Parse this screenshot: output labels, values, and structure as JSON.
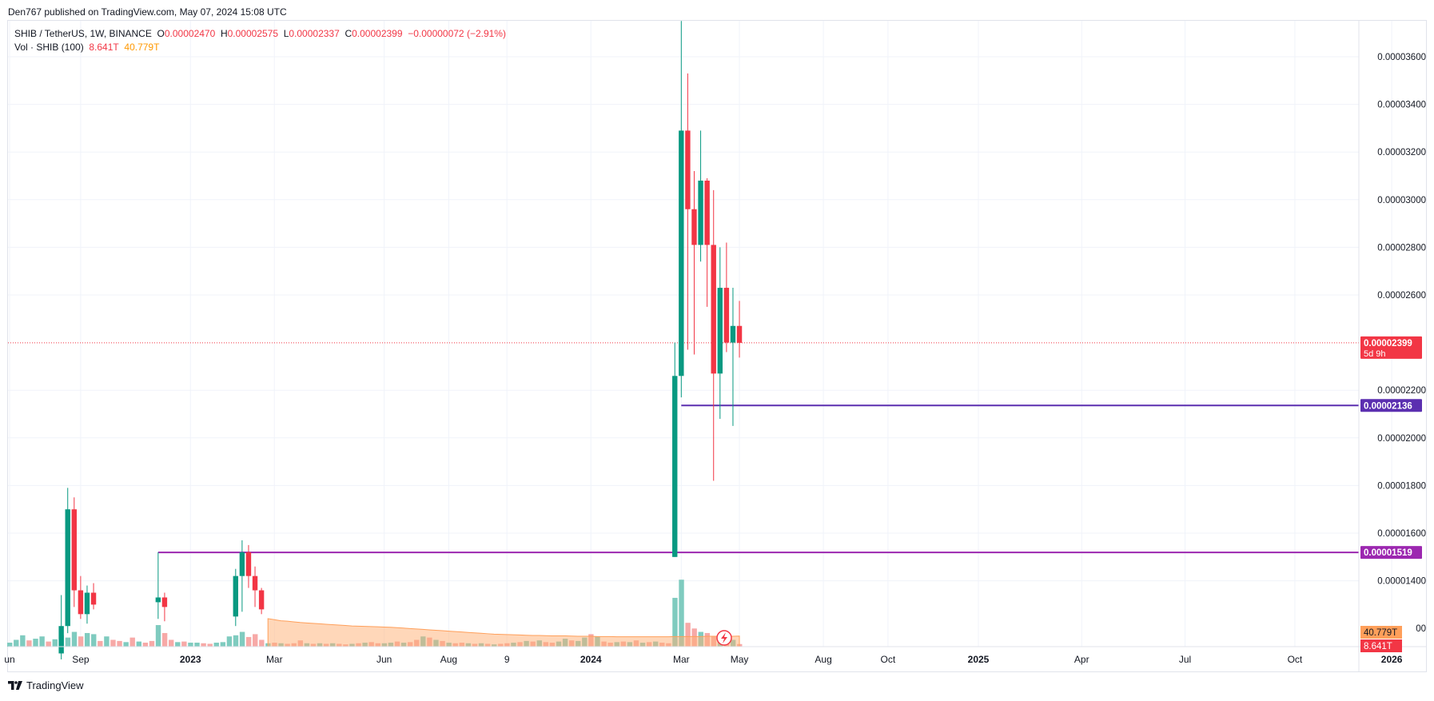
{
  "header": {
    "published": "Den767 published on TradingView.com, May 07, 2024 15:08 UTC"
  },
  "legend": {
    "symbol": "SHIB / TetherUS, 1W, BINANCE",
    "o_label": "O",
    "o_value": "0.00002470",
    "h_label": "H",
    "h_value": "0.00002575",
    "l_label": "L",
    "l_value": "0.00002337",
    "c_label": "C",
    "c_value": "0.00002399",
    "change": "−0.00000072 (−2.91%)",
    "vol_label": "Vol · SHIB (100)",
    "vol_value": "8.641T",
    "vol_ma_value": "40.779T"
  },
  "footer": {
    "brand": "TradingView"
  },
  "colors": {
    "up": "#089981",
    "down": "#f23645",
    "up_vol": "#7fcbbf",
    "down_vol": "#f7a9a7",
    "vol_ma": "#ffb074",
    "price_line": "#f23645",
    "level_1": "#5b2fb0",
    "level_2": "#9c27b0",
    "grid": "#f0f3fa",
    "axis_text": "#131722"
  },
  "chart_data": {
    "type": "candlestick",
    "symbol": "SHIB / TetherUS",
    "interval": "1W",
    "exchange": "BINANCE",
    "y_axis": {
      "ticks": [
        "0.00003600",
        "0.00003400",
        "0.00003200",
        "0.00003000",
        "0.00002800",
        "0.00002600",
        "0.00002200",
        "0.00002000",
        "0.00001800",
        "0.00001600",
        "0.00001400"
      ],
      "tick_values": [
        3.6e-05,
        3.4e-05,
        3.2e-05,
        3e-05,
        2.8e-05,
        2.6e-05,
        2.2e-05,
        2e-05,
        1.8e-05,
        1.6e-05,
        1.4e-05
      ],
      "range": [
        1.19e-05,
        3.75e-05
      ],
      "partial_tick_label": "00"
    },
    "x_axis": {
      "labels": [
        "un",
        "Sep",
        "2023",
        "Mar",
        "Jun",
        "Aug",
        "9",
        "2024",
        "Mar",
        "May",
        "Aug",
        "Oct",
        "2025",
        "Apr",
        "Jul",
        "Oct",
        "2026"
      ],
      "bold": [
        "2023",
        "2024",
        "2025",
        "2026"
      ],
      "week_index": [
        0,
        11,
        28,
        41,
        58,
        68,
        77,
        90,
        104,
        113,
        126,
        136,
        150,
        166,
        182,
        199,
        214
      ]
    },
    "price_labels": {
      "current": "0.00002399",
      "countdown": "5d 9h",
      "level_1": "0.00002136",
      "level_2": "0.00001519",
      "vol_ma": "40.779T",
      "volume": "8.641T"
    },
    "levels": [
      {
        "value": 2.136e-05,
        "start_week": 104
      },
      {
        "value": 1.519e-05,
        "start_week": 23
      }
    ],
    "current_price": 2.399e-05,
    "candles": [
      {
        "w": 8,
        "o": 1.095e-05,
        "h": 1.34e-05,
        "l": 1.07e-05,
        "c": 1.21e-05
      },
      {
        "w": 9,
        "o": 1.21e-05,
        "h": 1.79e-05,
        "l": 1.18e-05,
        "c": 1.7e-05
      },
      {
        "w": 10,
        "o": 1.7e-05,
        "h": 1.75e-05,
        "l": 1.29e-05,
        "c": 1.36e-05
      },
      {
        "w": 11,
        "o": 1.36e-05,
        "h": 1.42e-05,
        "l": 1.24e-05,
        "c": 1.26e-05
      },
      {
        "w": 12,
        "o": 1.26e-05,
        "h": 1.38e-05,
        "l": 1.22e-05,
        "c": 1.35e-05
      },
      {
        "w": 13,
        "o": 1.35e-05,
        "h": 1.39e-05,
        "l": 1.28e-05,
        "c": 1.3e-05
      },
      {
        "w": 23,
        "o": 1.31e-05,
        "h": 1.52e-05,
        "l": 1.24e-05,
        "c": 1.33e-05
      },
      {
        "w": 24,
        "o": 1.33e-05,
        "h": 1.35e-05,
        "l": 1.23e-05,
        "c": 1.29e-05
      },
      {
        "w": 35,
        "o": 1.25e-05,
        "h": 1.45e-05,
        "l": 1.21e-05,
        "c": 1.42e-05
      },
      {
        "w": 36,
        "o": 1.42e-05,
        "h": 1.57e-05,
        "l": 1.27e-05,
        "c": 1.52e-05
      },
      {
        "w": 37,
        "o": 1.52e-05,
        "h": 1.55e-05,
        "l": 1.37e-05,
        "c": 1.42e-05
      },
      {
        "w": 38,
        "o": 1.42e-05,
        "h": 1.46e-05,
        "l": 1.29e-05,
        "c": 1.36e-05
      },
      {
        "w": 39,
        "o": 1.36e-05,
        "h": 1.37e-05,
        "l": 1.26e-05,
        "c": 1.28e-05
      },
      {
        "w": 103,
        "o": 1.5e-05,
        "h": 2.4e-05,
        "l": 1.5e-05,
        "c": 2.26e-05
      },
      {
        "w": 104,
        "o": 2.26e-05,
        "h": 3.75e-05,
        "l": 2.17e-05,
        "c": 3.29e-05
      },
      {
        "w": 105,
        "o": 3.29e-05,
        "h": 3.53e-05,
        "l": 2.37e-05,
        "c": 2.96e-05
      },
      {
        "w": 106,
        "o": 2.96e-05,
        "h": 3.12e-05,
        "l": 2.35e-05,
        "c": 2.81e-05
      },
      {
        "w": 107,
        "o": 2.81e-05,
        "h": 3.29e-05,
        "l": 2.74e-05,
        "c": 3.08e-05
      },
      {
        "w": 108,
        "o": 3.08e-05,
        "h": 3.09e-05,
        "l": 2.55e-05,
        "c": 2.81e-05
      },
      {
        "w": 109,
        "o": 2.81e-05,
        "h": 3.04e-05,
        "l": 1.82e-05,
        "c": 2.27e-05
      },
      {
        "w": 110,
        "o": 2.27e-05,
        "h": 2.8e-05,
        "l": 2.08e-05,
        "c": 2.63e-05
      },
      {
        "w": 111,
        "o": 2.63e-05,
        "h": 2.82e-05,
        "l": 2.36e-05,
        "c": 2.4e-05
      },
      {
        "w": 112,
        "o": 2.4e-05,
        "h": 2.63e-05,
        "l": 2.05e-05,
        "c": 2.47e-05
      },
      {
        "w": 113,
        "o": 2.47e-05,
        "h": 2.575e-05,
        "l": 2.337e-05,
        "c": 2.399e-05
      }
    ],
    "volume": {
      "weeks": [
        0,
        1,
        2,
        3,
        4,
        5,
        6,
        7,
        8,
        9,
        10,
        11,
        12,
        13,
        14,
        15,
        16,
        17,
        18,
        19,
        20,
        21,
        22,
        23,
        24,
        25,
        26,
        27,
        28,
        29,
        30,
        31,
        32,
        33,
        34,
        35,
        36,
        37,
        38,
        39,
        40,
        41,
        42,
        43,
        44,
        45,
        46,
        47,
        48,
        49,
        50,
        51,
        52,
        53,
        54,
        55,
        56,
        57,
        58,
        59,
        60,
        61,
        62,
        63,
        64,
        65,
        66,
        67,
        68,
        69,
        70,
        71,
        72,
        73,
        74,
        75,
        76,
        77,
        78,
        79,
        80,
        81,
        82,
        83,
        84,
        85,
        86,
        87,
        88,
        89,
        90,
        91,
        92,
        93,
        94,
        95,
        96,
        97,
        98,
        99,
        100,
        101,
        102,
        103,
        104,
        105,
        106,
        107,
        108,
        109,
        110,
        111,
        112,
        113
      ],
      "values": [
        0.35,
        0.6,
        1.0,
        0.55,
        0.7,
        0.9,
        0.45,
        0.65,
        1.0,
        0.8,
        1.3,
        0.9,
        1.2,
        1.1,
        0.5,
        0.9,
        0.6,
        0.5,
        0.4,
        0.8,
        0.45,
        0.35,
        0.5,
        1.9,
        1.2,
        0.6,
        0.4,
        0.45,
        0.35,
        0.35,
        0.3,
        0.25,
        0.35,
        0.4,
        0.9,
        1.0,
        1.3,
        0.85,
        1.1,
        0.6,
        0.3,
        0.35,
        0.3,
        0.25,
        0.3,
        0.55,
        0.3,
        0.25,
        0.3,
        0.25,
        0.3,
        0.25,
        0.2,
        0.25,
        0.3,
        0.35,
        0.4,
        0.3,
        0.3,
        0.35,
        0.45,
        0.35,
        0.4,
        0.6,
        0.9,
        0.8,
        0.6,
        0.5,
        0.35,
        0.3,
        0.35,
        0.3,
        0.25,
        0.3,
        0.25,
        0.2,
        0.25,
        0.3,
        0.35,
        0.4,
        0.5,
        0.45,
        0.55,
        0.4,
        0.35,
        0.45,
        0.7,
        0.55,
        0.5,
        0.8,
        1.1,
        0.9,
        0.45,
        0.35,
        0.4,
        0.45,
        0.4,
        0.55,
        0.35,
        0.4,
        0.45,
        0.35,
        0.3,
        4.3,
        5.9,
        2.1,
        1.6,
        1.3,
        1.2,
        0.9,
        0.85,
        0.7,
        0.6,
        0.23
      ],
      "up": [
        1,
        1,
        1,
        0,
        1,
        1,
        0,
        1,
        1,
        1,
        1,
        0,
        1,
        1,
        0,
        1,
        0,
        0,
        1,
        0,
        1,
        0,
        0,
        1,
        0,
        0,
        1,
        0,
        1,
        1,
        0,
        0,
        1,
        1,
        1,
        1,
        1,
        0,
        0,
        0,
        1,
        0,
        1,
        0,
        0,
        0,
        1,
        0,
        1,
        0,
        1,
        0,
        0,
        1,
        0,
        1,
        0,
        0,
        1,
        1,
        0,
        1,
        0,
        0,
        1,
        0,
        1,
        0,
        1,
        0,
        0,
        1,
        0,
        1,
        0,
        1,
        0,
        0,
        1,
        0,
        1,
        0,
        1,
        0,
        0,
        1,
        1,
        0,
        1,
        1,
        0,
        1,
        0,
        0,
        1,
        0,
        1,
        0,
        1,
        0,
        1,
        0,
        0,
        1,
        1,
        0,
        0,
        1,
        0,
        0,
        1,
        0,
        1,
        0
      ],
      "ma_start_week": 40,
      "ma_values": [
        1.3,
        1.25,
        1.2,
        1.18,
        1.15,
        1.12,
        1.1,
        1.08,
        1.06,
        1.04,
        1.02,
        1.0,
        0.98,
        0.96,
        0.95,
        0.94,
        0.93,
        0.92,
        0.91,
        0.9,
        0.88,
        0.86,
        0.84,
        0.82,
        0.8,
        0.78,
        0.76,
        0.74,
        0.72,
        0.7,
        0.68,
        0.66,
        0.64,
        0.62,
        0.6,
        0.58,
        0.57,
        0.56,
        0.55,
        0.54,
        0.53,
        0.52,
        0.52,
        0.51,
        0.5,
        0.5,
        0.5,
        0.49,
        0.48,
        0.48,
        0.48,
        0.47,
        0.47,
        0.47,
        0.46,
        0.46,
        0.46,
        0.46,
        0.46,
        0.46,
        0.46,
        0.46,
        0.46,
        0.47,
        0.47,
        0.47,
        0.47,
        0.47,
        0.48,
        0.48,
        0.48,
        0.48,
        0.48,
        0.49
      ]
    }
  }
}
